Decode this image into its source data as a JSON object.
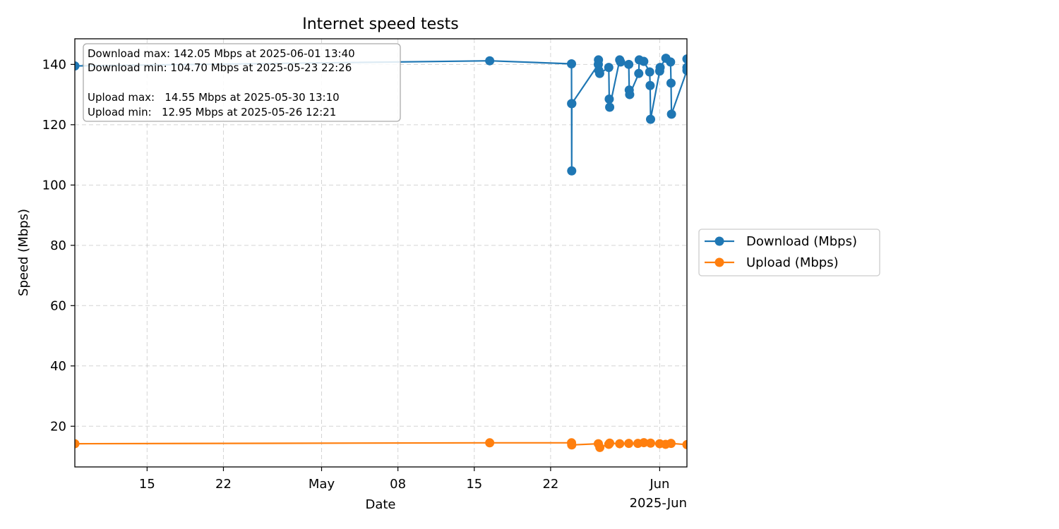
{
  "chart_data": {
    "type": "line",
    "title": "Internet speed tests",
    "xlabel": "Date",
    "ylabel": "Speed (Mbps)",
    "x_axis": {
      "type": "date",
      "range": [
        "2025-04-08 09:00",
        "2025-06-03 12:00"
      ],
      "ticks": [
        {
          "date": "2025-04-15",
          "label": "15"
        },
        {
          "date": "2025-04-22",
          "label": "22"
        },
        {
          "date": "2025-05-01",
          "label": "May"
        },
        {
          "date": "2025-05-08",
          "label": "08"
        },
        {
          "date": "2025-05-15",
          "label": "15"
        },
        {
          "date": "2025-05-22",
          "label": "22"
        },
        {
          "date": "2025-06-01",
          "label": "Jun"
        }
      ],
      "offset_label": "2025-Jun"
    },
    "y_axis": {
      "range": [
        6.5,
        148.5
      ],
      "ticks": [
        20,
        40,
        60,
        80,
        100,
        120,
        140
      ]
    },
    "grid": true,
    "legend_position": "outside-right",
    "series": [
      {
        "name": "Download (Mbps)",
        "color": "#1f77b4",
        "points": [
          [
            "2025-04-08 09:00",
            139.5
          ],
          [
            "2025-05-16 10:00",
            141.2
          ],
          [
            "2025-05-23 22:00",
            140.2
          ],
          [
            "2025-05-23 22:10",
            127.0
          ],
          [
            "2025-05-23 22:26",
            104.7
          ],
          [
            "2025-05-23 22:40",
            127.0
          ],
          [
            "2025-05-26 09:00",
            140.0
          ],
          [
            "2025-05-26 09:20",
            141.5
          ],
          [
            "2025-05-26 10:00",
            138.0
          ],
          [
            "2025-05-26 12:00",
            137.0
          ],
          [
            "2025-05-27 08:00",
            139.0
          ],
          [
            "2025-05-27 09:00",
            128.5
          ],
          [
            "2025-05-27 10:00",
            125.8
          ],
          [
            "2025-05-28 08:00",
            141.5
          ],
          [
            "2025-05-28 10:00",
            140.8
          ],
          [
            "2025-05-29 04:00",
            140.0
          ],
          [
            "2025-05-29 05:00",
            131.5
          ],
          [
            "2025-05-29 06:00",
            130.0
          ],
          [
            "2025-05-30 02:00",
            137.0
          ],
          [
            "2025-05-30 03:00",
            141.5
          ],
          [
            "2025-05-30 13:00",
            141.0
          ],
          [
            "2025-05-31 02:00",
            137.5
          ],
          [
            "2025-05-31 03:00",
            133.0
          ],
          [
            "2025-05-31 04:00",
            121.8
          ],
          [
            "2025-06-01 00:00",
            137.8
          ],
          [
            "2025-06-01 01:00",
            139.0
          ],
          [
            "2025-06-01 13:40",
            142.05
          ],
          [
            "2025-06-02 00:00",
            140.8
          ],
          [
            "2025-06-02 01:00",
            133.8
          ],
          [
            "2025-06-02 02:00",
            123.5
          ],
          [
            "2025-06-03 12:00",
            138.0
          ],
          [
            "2025-06-03 12:00",
            141.8
          ],
          [
            "2025-06-03 12:00",
            139.0
          ]
        ]
      },
      {
        "name": "Upload (Mbps)",
        "color": "#ff7f0e",
        "points": [
          [
            "2025-04-08 09:00",
            14.2
          ],
          [
            "2025-05-16 10:00",
            14.5
          ],
          [
            "2025-05-23 22:00",
            14.5
          ],
          [
            "2025-05-23 22:30",
            13.8
          ],
          [
            "2025-05-26 09:00",
            14.2
          ],
          [
            "2025-05-26 12:21",
            12.95
          ],
          [
            "2025-05-27 08:00",
            14.0
          ],
          [
            "2025-05-27 10:00",
            14.4
          ],
          [
            "2025-05-28 08:00",
            14.2
          ],
          [
            "2025-05-29 04:00",
            14.3
          ],
          [
            "2025-05-30 00:00",
            14.3
          ],
          [
            "2025-05-30 13:10",
            14.55
          ],
          [
            "2025-05-31 04:00",
            14.4
          ],
          [
            "2025-06-01 00:00",
            14.2
          ],
          [
            "2025-06-01 13:00",
            14.0
          ],
          [
            "2025-06-02 01:00",
            14.3
          ],
          [
            "2025-06-03 12:00",
            13.9
          ]
        ]
      }
    ],
    "annotation": {
      "lines": [
        "Download max: 142.05 Mbps at 2025-06-01 13:40",
        "Download min: 104.70 Mbps at 2025-05-23 22:26",
        "",
        "Upload max:   14.55 Mbps at 2025-05-30 13:10",
        "Upload min:   12.95 Mbps at 2025-05-26 12:21"
      ],
      "position": "top-left"
    }
  }
}
